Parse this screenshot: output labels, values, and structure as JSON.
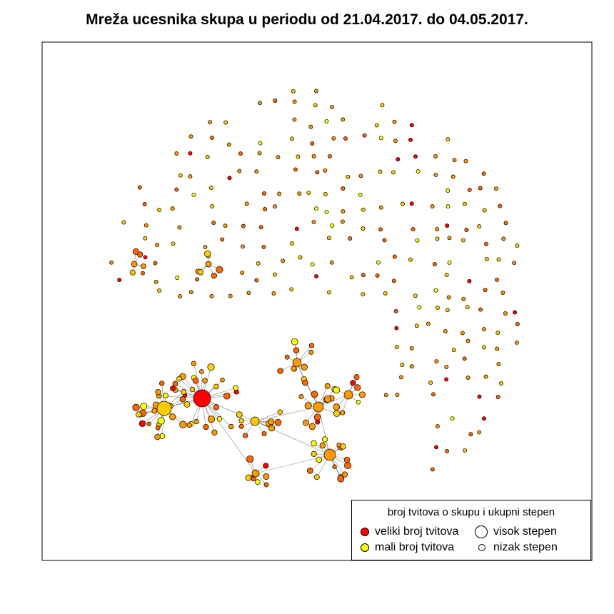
{
  "title": "Mreža ucesnika skupa u periodu od 21.04.2017. do 04.05.2017.",
  "legend": {
    "title": "broj tvitova o skupu i ukupni stepen",
    "items": [
      {
        "label": "veliki broj tvitova",
        "color": "#ff0000"
      },
      {
        "label": "visok stepen",
        "color": "#ffffff"
      },
      {
        "label": "mali broj tvitova",
        "color": "#ffff00"
      },
      {
        "label": "nizak stepen",
        "color": "#ffffff"
      }
    ]
  },
  "colors": {
    "high": "#ff0000",
    "mid_high": "#ff6600",
    "mid": "#ff9900",
    "mid_low": "#ffcc00",
    "low": "#ffff00",
    "edge": "#888888"
  }
}
